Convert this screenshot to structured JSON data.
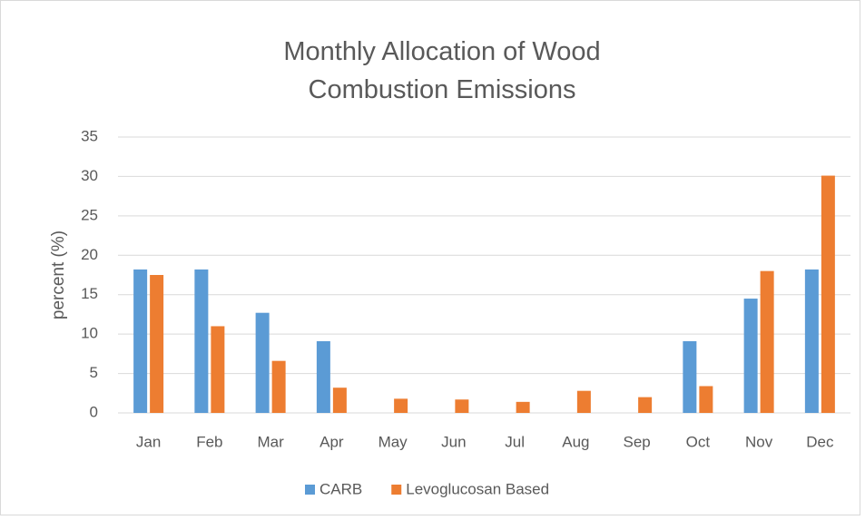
{
  "chart_data": {
    "type": "bar",
    "title": "Monthly Allocation of Wood Combustion Emissions",
    "ylabel": "percent (%)",
    "categories": [
      "Jan",
      "Feb",
      "Mar",
      "Apr",
      "May",
      "Jun",
      "Jul",
      "Aug",
      "Sep",
      "Oct",
      "Nov",
      "Dec"
    ],
    "series": [
      {
        "name": "CARB",
        "color": "#5b9bd5",
        "values": [
          18.2,
          18.2,
          12.7,
          9.1,
          0,
          0,
          0,
          0,
          0,
          9.1,
          14.5,
          18.2
        ]
      },
      {
        "name": "Levoglucosan Based",
        "color": "#ed7d31",
        "values": [
          17.5,
          11.0,
          6.6,
          3.2,
          1.8,
          1.7,
          1.4,
          2.8,
          2.0,
          3.4,
          18.0,
          30.1
        ]
      }
    ],
    "ylim": [
      0,
      35
    ],
    "yticks": [
      0,
      5,
      10,
      15,
      20,
      25,
      30,
      35
    ],
    "grid": true,
    "legend": "bottom"
  }
}
